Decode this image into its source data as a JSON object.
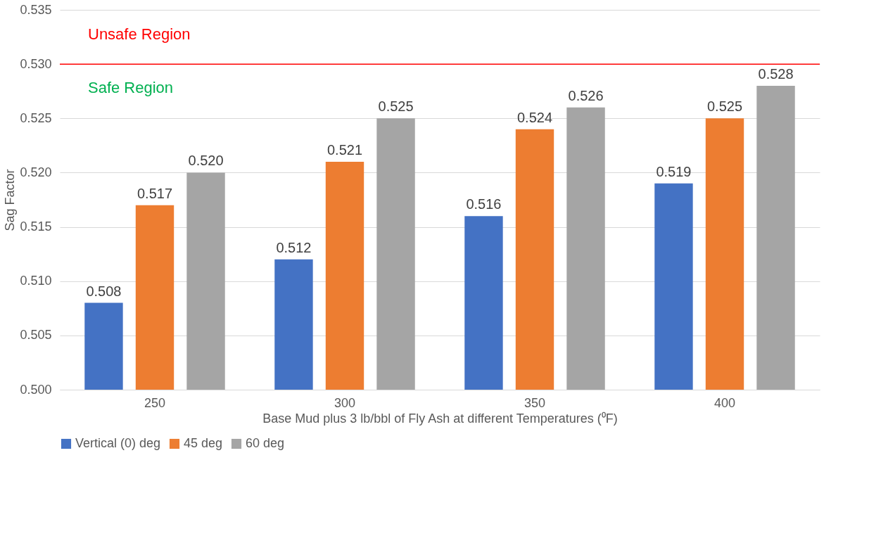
{
  "chart_data": {
    "type": "bar",
    "xlabel": "Base Mud plus 3 lb/bbl of Fly Ash at different Temperatures (⁰F)",
    "ylabel": "Sag Factor",
    "categories": [
      "250",
      "300",
      "350",
      "400"
    ],
    "series": [
      {
        "name": "Vertical (0) deg",
        "color": "#4472c4",
        "values": [
          0.508,
          0.512,
          0.516,
          0.519
        ],
        "value_labels": [
          "0.508",
          "0.512",
          "0.516",
          "0.519"
        ]
      },
      {
        "name": "45 deg",
        "color": "#ed7d31",
        "values": [
          0.517,
          0.521,
          0.524,
          0.525
        ],
        "value_labels": [
          "0.517",
          "0.521",
          "0.524",
          "0.525"
        ]
      },
      {
        "name": "60 deg",
        "color": "#a5a5a5",
        "values": [
          0.52,
          0.525,
          0.526,
          0.528
        ],
        "value_labels": [
          "0.520",
          "0.525",
          "0.526",
          "0.528"
        ]
      }
    ],
    "ylim": [
      0.5,
      0.535
    ],
    "yticks": [
      {
        "value": 0.5,
        "label": "0.500"
      },
      0.505,
      {
        "value": 0.51,
        "label": "0.510"
      },
      0.515,
      {
        "value": 0.52,
        "label": "0.520"
      },
      0.525,
      {
        "value": 0.53,
        "label": "0.530"
      },
      0.535
    ],
    "ref_lines": [
      {
        "axis": "y",
        "value": 0.53,
        "color": "#ff0000"
      }
    ],
    "annotations": [
      "Unsafe Region",
      "Safe Region"
    ],
    "grid": "y",
    "legend": "bottom"
  }
}
